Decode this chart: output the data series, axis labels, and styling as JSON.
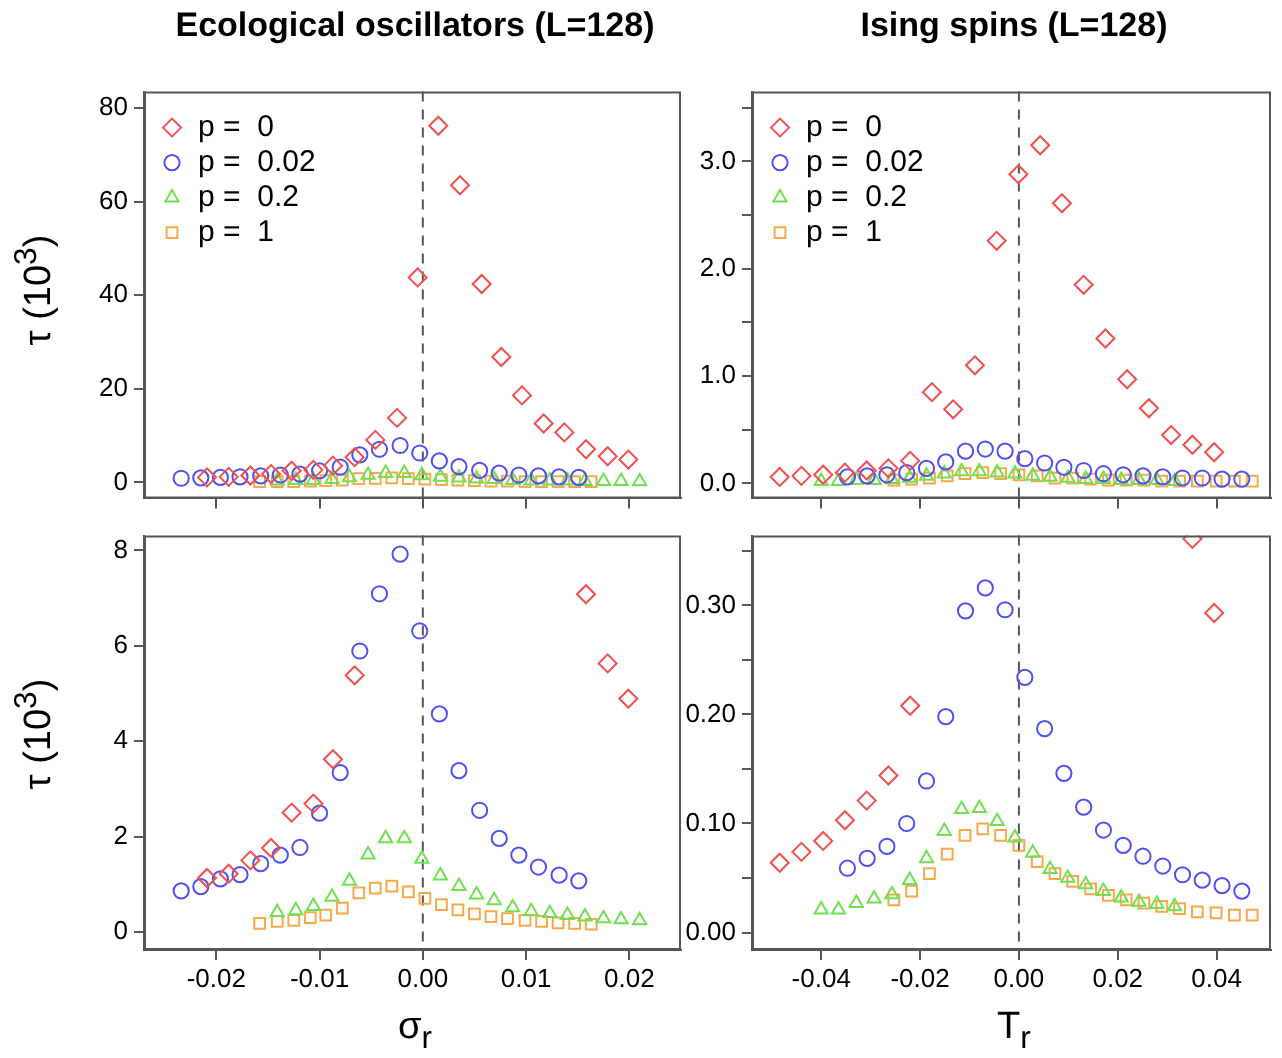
{
  "chart_data": [
    {
      "type": "scatter",
      "title": "Ecological oscillators (L=128)",
      "ylabel": "τ (10$^{3}$)",
      "xlim": [
        -0.027,
        0.025
      ],
      "ylim": [
        -3.4,
        83.5
      ],
      "xticks": [
        -0.02,
        -0.01,
        0,
        0.01,
        0.02
      ],
      "yticks": [
        0,
        20,
        40,
        60,
        80
      ],
      "tick_labels": "y",
      "legend": "top left",
      "ref_lines": [
        {
          "axis": "x",
          "value": 0,
          "line_style": "dashed",
          "color": "#555555"
        }
      ],
      "series": [
        {
          "name": "p =  0",
          "color": "#f05050",
          "marker": "diamond",
          "x": [
            -0.0209,
            -0.0188,
            -0.0167,
            -0.0147,
            -0.0127,
            -0.0106,
            -0.0087,
            -0.0066,
            -0.0046,
            -0.0025,
            -0.0005,
            0.0015,
            0.0036,
            0.0057,
            0.0076,
            0.0096,
            0.0117,
            0.0137,
            0.0158,
            0.0179,
            0.0199
          ],
          "values": [
            1.1,
            1.2,
            1.5,
            1.8,
            2.5,
            2.7,
            3.6,
            5.4,
            9.1,
            13.8,
            43.8,
            76.2,
            63.5,
            42.4,
            26.8,
            18.6,
            12.6,
            10.7,
            7.1,
            5.6,
            4.9
          ]
        },
        {
          "name": "p =  0.02",
          "color": "#5050f0",
          "marker": "circle",
          "x": [
            -0.0234,
            -0.0215,
            -0.0196,
            -0.0177,
            -0.0157,
            -0.0138,
            -0.0119,
            -0.01,
            -0.008,
            -0.0061,
            -0.0042,
            -0.0022,
            -0.0003,
            0.0016,
            0.0035,
            0.0055,
            0.0074,
            0.0093,
            0.0112,
            0.0132,
            0.0151
          ],
          "values": [
            0.9,
            1.0,
            1.1,
            1.2,
            1.4,
            1.6,
            1.8,
            2.5,
            3.3,
            5.9,
            7.1,
            7.9,
            6.3,
            4.6,
            3.4,
            2.6,
            2.0,
            1.6,
            1.4,
            1.2,
            1.1
          ]
        },
        {
          "name": "p =  0.2",
          "color": "#70e050",
          "marker": "triangle",
          "x": [
            -0.0141,
            -0.0123,
            -0.0106,
            -0.0088,
            -0.0071,
            -0.0053,
            -0.0036,
            -0.0018,
            -0.0001,
            0.0017,
            0.0035,
            0.0052,
            0.0069,
            0.0087,
            0.0105,
            0.0123,
            0.014,
            0.0157,
            0.0175,
            0.0192,
            0.021
          ],
          "values": [
            0.4,
            0.5,
            0.5,
            0.7,
            1.1,
            1.6,
            2.0,
            2.0,
            1.5,
            1.2,
            1.0,
            0.8,
            0.7,
            0.5,
            0.4,
            0.4,
            0.4,
            0.3,
            0.3,
            0.3,
            0.2
          ]
        },
        {
          "name": "p =  1",
          "color": "#f8a848",
          "marker": "square",
          "x": [
            -0.0158,
            -0.0141,
            -0.0125,
            -0.0109,
            -0.0094,
            -0.0078,
            -0.0062,
            -0.0046,
            -0.003,
            -0.0014,
            0.0002,
            0.0018,
            0.0034,
            0.005,
            0.0066,
            0.0082,
            0.0099,
            0.0115,
            0.0131,
            0.0147,
            0.0163
          ],
          "values": [
            0.2,
            0.2,
            0.2,
            0.3,
            0.4,
            0.5,
            0.8,
            0.9,
            1.0,
            0.8,
            0.7,
            0.6,
            0.5,
            0.4,
            0.3,
            0.3,
            0.2,
            0.2,
            0.2,
            0.2,
            0.2
          ]
        }
      ]
    },
    {
      "type": "scatter",
      "title": "Ising spins (L=128)",
      "xlim": [
        -0.054,
        0.051
      ],
      "ylim": [
        -0.14,
        3.65
      ],
      "xticks": [
        -0.04,
        -0.02,
        0,
        0.02,
        0.04
      ],
      "yticks": [
        {
          "value": 0,
          "label": "0.0"
        },
        {
          "value": 0.5,
          "label": null
        },
        {
          "value": 1,
          "label": "1.0"
        },
        {
          "value": 1.5,
          "label": null
        },
        {
          "value": 2,
          "label": "2.0"
        },
        {
          "value": 2.5,
          "label": null
        },
        {
          "value": 3,
          "label": "3.0"
        },
        {
          "value": 3.5,
          "label": null
        }
      ],
      "tick_labels": "y",
      "legend": "top left",
      "ref_lines": [
        {
          "axis": "x",
          "value": 0,
          "line_style": "dashed",
          "color": "#555555"
        }
      ],
      "series": [
        {
          "name": "p =  0",
          "color": "#f05050",
          "marker": "diamond",
          "x": [
            -0.0484,
            -0.044,
            -0.0396,
            -0.0352,
            -0.0308,
            -0.0264,
            -0.022,
            -0.0176,
            -0.0133,
            -0.0089,
            -0.0045,
            -0.0001,
            0.0043,
            0.0087,
            0.0131,
            0.0175,
            0.0219,
            0.0263,
            0.0308,
            0.0351,
            0.0395
          ],
          "values": [
            0.06,
            0.07,
            0.08,
            0.1,
            0.12,
            0.14,
            0.21,
            0.85,
            0.69,
            1.1,
            2.26,
            2.88,
            3.15,
            2.61,
            1.85,
            1.35,
            0.97,
            0.7,
            0.45,
            0.36,
            0.29
          ]
        },
        {
          "name": "p =  0.02",
          "color": "#5050f0",
          "marker": "circle",
          "x": [
            -0.0347,
            -0.0307,
            -0.0267,
            -0.0227,
            -0.0187,
            -0.0148,
            -0.0108,
            -0.0068,
            -0.0028,
            0.0012,
            0.0052,
            0.0091,
            0.0131,
            0.0171,
            0.0211,
            0.0251,
            0.0291,
            0.0331,
            0.0371,
            0.0411,
            0.0451
          ],
          "values": [
            0.06,
            0.07,
            0.08,
            0.1,
            0.14,
            0.2,
            0.3,
            0.32,
            0.3,
            0.23,
            0.19,
            0.15,
            0.12,
            0.09,
            0.08,
            0.07,
            0.06,
            0.05,
            0.05,
            0.04,
            0.04
          ]
        },
        {
          "name": "p =  0.2",
          "color": "#70e050",
          "marker": "triangle",
          "x": [
            -0.04,
            -0.0365,
            -0.0329,
            -0.0293,
            -0.0257,
            -0.0221,
            -0.0187,
            -0.0151,
            -0.0116,
            -0.008,
            -0.0044,
            -0.0008,
            0.0028,
            0.0063,
            0.0099,
            0.0135,
            0.0171,
            0.0207,
            0.0243,
            0.0279,
            0.0315
          ],
          "values": [
            0.02,
            0.02,
            0.03,
            0.03,
            0.04,
            0.05,
            0.07,
            0.09,
            0.11,
            0.11,
            0.1,
            0.09,
            0.07,
            0.06,
            0.05,
            0.04,
            0.04,
            0.03,
            0.03,
            0.03,
            0.02
          ]
        },
        {
          "name": "p =  1",
          "color": "#f8a848",
          "marker": "square",
          "x": [
            -0.0253,
            -0.0217,
            -0.0181,
            -0.0145,
            -0.0109,
            -0.0073,
            -0.0037,
            0.0,
            0.0037,
            0.0073,
            0.0109,
            0.0145,
            0.0181,
            0.0217,
            0.0253,
            0.0289,
            0.0325,
            0.0361,
            0.0399,
            0.0436,
            0.0472
          ],
          "values": [
            0.03,
            0.04,
            0.05,
            0.07,
            0.09,
            0.1,
            0.09,
            0.08,
            0.07,
            0.05,
            0.05,
            0.04,
            0.03,
            0.03,
            0.03,
            0.02,
            0.02,
            0.02,
            0.02,
            0.02,
            0.02
          ]
        }
      ]
    },
    {
      "type": "scatter",
      "ylabel": "τ (10$^{3}$)",
      "xlabel": "σ$_{r}$",
      "xlim": [
        -0.027,
        0.025
      ],
      "ylim": [
        -0.38,
        8.31
      ],
      "xticks": [
        -0.02,
        -0.01,
        {
          "value": 0,
          "label": "0.00"
        },
        0.01,
        0.02
      ],
      "yticks": [
        0,
        2,
        4,
        6,
        8
      ],
      "ref_lines": [
        {
          "axis": "x",
          "value": 0,
          "line_style": "dashed",
          "color": "#555555"
        }
      ],
      "series": [
        {
          "color": "#f05050",
          "marker": "diamond",
          "x": [
            -0.0209,
            -0.0188,
            -0.0167,
            -0.0147,
            -0.0127,
            -0.0106,
            -0.0087,
            -0.0066,
            -0.0046,
            -0.0025,
            -0.0005,
            0.0015,
            0.0036,
            0.0057,
            0.0076,
            0.0096,
            0.0117,
            0.0137,
            0.0158,
            0.0179,
            0.0199
          ],
          "values": [
            1.13,
            1.22,
            1.5,
            1.76,
            2.5,
            2.69,
            3.62,
            5.38,
            null,
            null,
            null,
            null,
            null,
            null,
            null,
            null,
            null,
            null,
            7.08,
            5.63,
            4.89
          ]
        },
        {
          "color": "#5050f0",
          "marker": "circle",
          "x": [
            -0.0234,
            -0.0215,
            -0.0196,
            -0.0177,
            -0.0157,
            -0.0138,
            -0.0119,
            -0.01,
            -0.008,
            -0.0061,
            -0.0042,
            -0.0022,
            -0.0003,
            0.0016,
            0.0035,
            0.0055,
            0.0074,
            0.0093,
            0.0112,
            0.0132,
            0.0151
          ],
          "values": [
            0.86,
            0.95,
            1.11,
            1.2,
            1.43,
            1.61,
            1.77,
            2.49,
            3.34,
            5.89,
            7.09,
            7.92,
            6.31,
            4.57,
            3.38,
            2.55,
            1.96,
            1.61,
            1.36,
            1.19,
            1.07
          ]
        },
        {
          "color": "#70e050",
          "marker": "triangle",
          "x": [
            -0.0141,
            -0.0123,
            -0.0106,
            -0.0088,
            -0.0071,
            -0.0053,
            -0.0036,
            -0.0018,
            -0.0001,
            0.0017,
            0.0035,
            0.0052,
            0.0069,
            0.0087,
            0.0105,
            0.0123,
            0.014,
            0.0157,
            0.0175,
            0.0192,
            0.021
          ],
          "values": [
            0.41,
            0.45,
            0.54,
            0.73,
            1.07,
            1.62,
            1.96,
            1.96,
            1.53,
            1.18,
            0.96,
            0.78,
            0.66,
            0.51,
            0.43,
            0.39,
            0.35,
            0.32,
            0.28,
            0.26,
            0.24
          ]
        },
        {
          "color": "#f8a848",
          "marker": "square",
          "x": [
            -0.0158,
            -0.0141,
            -0.0125,
            -0.0109,
            -0.0094,
            -0.0078,
            -0.0062,
            -0.0046,
            -0.003,
            -0.0014,
            0.0002,
            0.0018,
            0.0034,
            0.005,
            0.0066,
            0.0082,
            0.0099,
            0.0115,
            0.0131,
            0.0147,
            0.0163
          ],
          "values": [
            0.18,
            0.22,
            0.24,
            0.3,
            0.35,
            0.5,
            0.82,
            0.92,
            0.96,
            0.84,
            0.7,
            0.57,
            0.46,
            0.38,
            0.32,
            0.28,
            0.24,
            0.22,
            0.19,
            0.18,
            0.16
          ]
        }
      ]
    },
    {
      "type": "scatter",
      "xlabel": "T$_{r}$",
      "xlim": [
        -0.054,
        0.051
      ],
      "ylim": [
        -0.016,
        0.364
      ],
      "xticks": [
        -0.04,
        -0.02,
        {
          "value": 0,
          "label": "0.00"
        },
        0.02,
        0.04
      ],
      "yticks": [
        {
          "value": 0,
          "label": "0.00"
        },
        {
          "value": 0.05,
          "label": null
        },
        {
          "value": 0.1,
          "label": "0.10"
        },
        {
          "value": 0.15,
          "label": null
        },
        {
          "value": 0.2,
          "label": "0.20"
        },
        {
          "value": 0.25,
          "label": null
        },
        {
          "value": 0.3,
          "label": "0.30"
        },
        {
          "value": 0.35,
          "label": null
        }
      ],
      "ref_lines": [
        {
          "axis": "x",
          "value": 0,
          "line_style": "dashed",
          "color": "#555555"
        }
      ],
      "series": [
        {
          "color": "#f05050",
          "marker": "diamond",
          "x": [
            -0.0484,
            -0.044,
            -0.0396,
            -0.0352,
            -0.0308,
            -0.0264,
            -0.022,
            -0.0176,
            -0.0133,
            -0.0089,
            -0.0045,
            -0.0001,
            0.0043,
            0.0087,
            0.0131,
            0.0175,
            0.0219,
            0.0263,
            0.0308,
            0.0351,
            0.0395
          ],
          "values": [
            0.064,
            0.074,
            0.084,
            0.103,
            0.121,
            0.144,
            0.208,
            null,
            null,
            null,
            null,
            null,
            null,
            null,
            null,
            null,
            null,
            null,
            null,
            0.361,
            0.293
          ]
        },
        {
          "color": "#5050f0",
          "marker": "circle",
          "x": [
            -0.0347,
            -0.0307,
            -0.0267,
            -0.0227,
            -0.0187,
            -0.0148,
            -0.0108,
            -0.0068,
            -0.0028,
            0.0012,
            0.0052,
            0.0091,
            0.0131,
            0.0171,
            0.0211,
            0.0251,
            0.0291,
            0.0331,
            0.0371,
            0.0411,
            0.0451
          ],
          "values": [
            0.059,
            0.068,
            0.079,
            0.1,
            0.139,
            0.198,
            0.295,
            0.316,
            0.296,
            0.234,
            0.187,
            0.146,
            0.115,
            0.094,
            0.08,
            0.07,
            0.061,
            0.053,
            0.048,
            0.043,
            0.038
          ]
        },
        {
          "color": "#70e050",
          "marker": "triangle",
          "x": [
            -0.04,
            -0.0365,
            -0.0329,
            -0.0293,
            -0.0257,
            -0.0221,
            -0.0187,
            -0.0151,
            -0.0116,
            -0.008,
            -0.0044,
            -0.0008,
            0.0028,
            0.0063,
            0.0099,
            0.0135,
            0.0171,
            0.0207,
            0.0243,
            0.0279,
            0.0315
          ],
          "values": [
            0.021,
            0.021,
            0.027,
            0.031,
            0.035,
            0.048,
            0.068,
            0.093,
            0.113,
            0.114,
            0.102,
            0.087,
            0.073,
            0.058,
            0.05,
            0.044,
            0.038,
            0.032,
            0.028,
            0.026,
            0.024
          ]
        },
        {
          "color": "#f8a848",
          "marker": "square",
          "x": [
            -0.0253,
            -0.0217,
            -0.0181,
            -0.0145,
            -0.0109,
            -0.0073,
            -0.0037,
            0.0,
            0.0037,
            0.0073,
            0.0109,
            0.0145,
            0.0181,
            0.0217,
            0.0253,
            0.0289,
            0.0325,
            0.0361,
            0.0399,
            0.0436,
            0.0472
          ],
          "values": [
            0.03,
            0.038,
            0.054,
            0.072,
            0.089,
            0.095,
            0.089,
            0.08,
            0.065,
            0.054,
            0.047,
            0.04,
            0.034,
            0.03,
            0.027,
            0.024,
            0.022,
            0.019,
            0.018,
            0.016,
            0.016
          ]
        }
      ]
    }
  ]
}
